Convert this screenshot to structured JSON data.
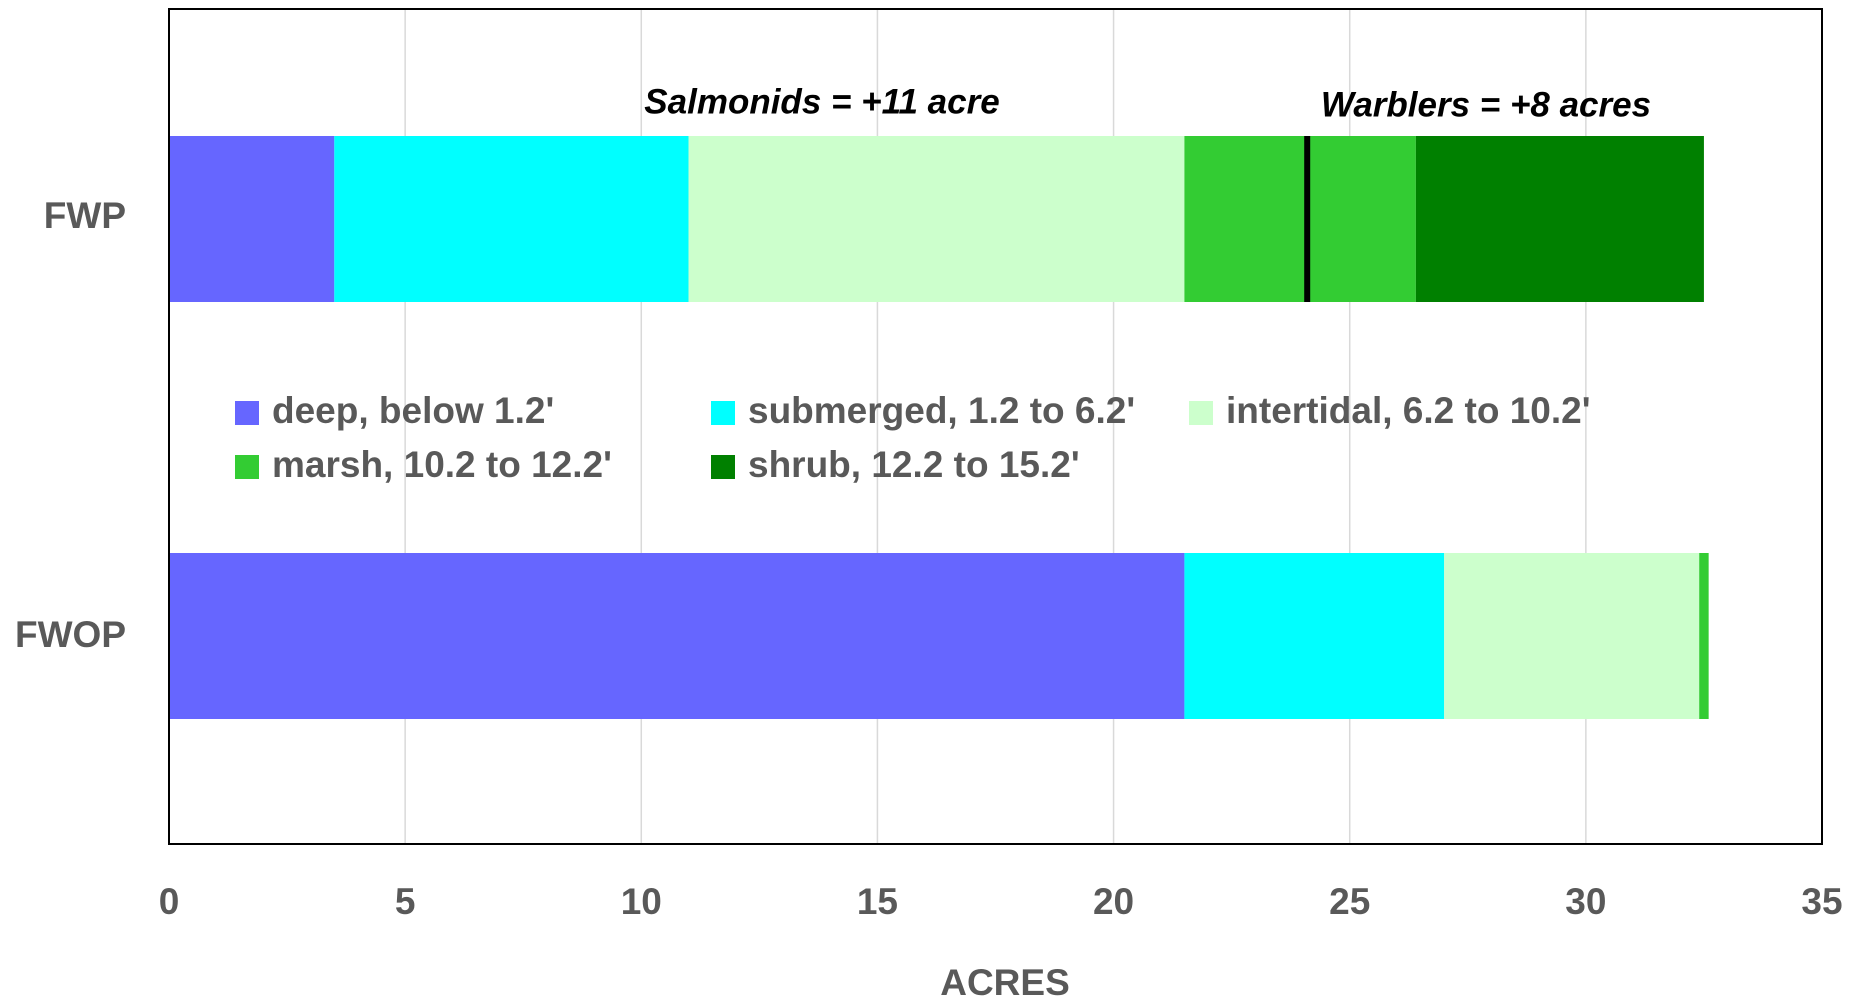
{
  "chart_data": {
    "type": "stacked_bar_horizontal",
    "categories": [
      "FWP",
      "FWOP"
    ],
    "series": [
      {
        "name": "deep, below 1.2'",
        "color": "#6666ff",
        "values": [
          3.5,
          21.5
        ]
      },
      {
        "name": "submerged, 1.2 to 6.2'",
        "color": "#00ffff",
        "values": [
          7.5,
          5.5
        ]
      },
      {
        "name": "intertidal, 6.2 to 10.2'",
        "color": "#ccffcc",
        "values": [
          10.5,
          5.4
        ]
      },
      {
        "name": "marsh, 10.2 to 12.2'",
        "color": "#33cc33",
        "values": [
          4.9,
          0.2
        ]
      },
      {
        "name": "shrub, 12.2 to 15.2'",
        "color": "#008000",
        "values": [
          6.1,
          0
        ]
      }
    ],
    "xlabel": "ACRES",
    "xlim": [
      0,
      35
    ],
    "xticks": [
      0,
      5,
      10,
      15,
      20,
      25,
      30,
      35
    ],
    "grid": true,
    "annotations": [
      "Salmonids = +11 acre",
      "Warblers = +8 acres"
    ],
    "reference_line": 24.1
  }
}
